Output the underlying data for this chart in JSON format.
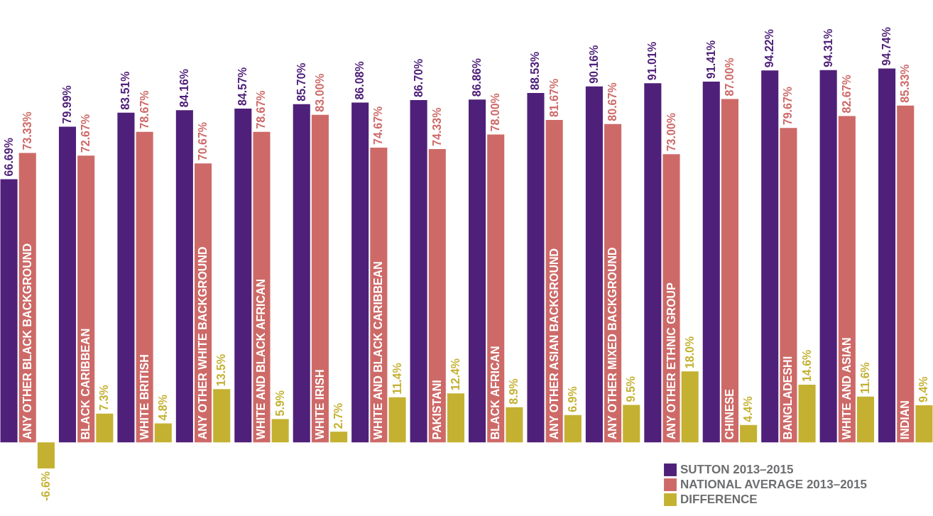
{
  "chart_data": {
    "type": "bar",
    "categories": [
      "ANY OTHER BLACK BACKGROUND",
      "BLACK CARIBBEAN",
      "WHITE BRITISH",
      "ANY OTHER WHITE BACKGROUND",
      "WHITE AND BLACK AFRICAN",
      "WHITE IRISH",
      "WHITE AND BLACK CARIBBEAN",
      "PAKISTANI",
      "BLACK AFRICAN",
      "ANY OTHER ASIAN BACKGROUND",
      "ANY OTHER MIXED BACKGROUND",
      "ANY OTHER ETHNIC GROUP",
      "CHINESE",
      "BANGLADESHI",
      "WHITE AND ASIAN",
      "INDIAN"
    ],
    "series": [
      {
        "name": "SUTTON 2013–2015",
        "color": "#4f2079",
        "values": [
          66.69,
          79.99,
          83.51,
          84.16,
          84.57,
          85.7,
          86.08,
          86.7,
          86.86,
          88.53,
          90.16,
          91.01,
          91.41,
          94.22,
          94.31,
          94.74
        ],
        "value_labels": [
          "66.69%",
          "79.99%",
          "83.51%",
          "84.16%",
          "84.57%",
          "85.70%",
          "86.08%",
          "86.70%",
          "86.86%",
          "88.53%",
          "90.16%",
          "91.01%",
          "91.41%",
          "94.22%",
          "94.31%",
          "94.74%"
        ]
      },
      {
        "name": "NATIONAL AVERAGE 2013–2015",
        "color": "#cd6a68",
        "values": [
          73.33,
          72.67,
          78.67,
          70.67,
          78.67,
          83.0,
          74.67,
          74.33,
          78.0,
          81.67,
          80.67,
          73.0,
          87.0,
          79.67,
          82.67,
          85.33
        ],
        "value_labels": [
          "73.33%",
          "72.67%",
          "78.67%",
          "70.67%",
          "78.67%",
          "83.00%",
          "74.67%",
          "74.33%",
          "78.00%",
          "81.67%",
          "80.67%",
          "73.00%",
          "87.00%",
          "79.67%",
          "82.67%",
          "85.33%"
        ]
      },
      {
        "name": "DIFFERENCE",
        "color": "#c4b131",
        "values": [
          -6.6,
          7.3,
          4.8,
          13.5,
          5.9,
          2.7,
          11.4,
          12.4,
          8.9,
          6.9,
          9.5,
          18.0,
          4.4,
          14.6,
          11.6,
          9.4
        ],
        "value_labels": [
          "-6.6%",
          "7.3%",
          "4.8%",
          "13.5%",
          "5.9%",
          "2.7%",
          "11.4%",
          "12.4%",
          "8.9%",
          "6.9%",
          "9.5%",
          "18.0%",
          "4.4%",
          "14.6%",
          "11.6%",
          "9.4%"
        ]
      }
    ],
    "legend": "bottom right"
  }
}
